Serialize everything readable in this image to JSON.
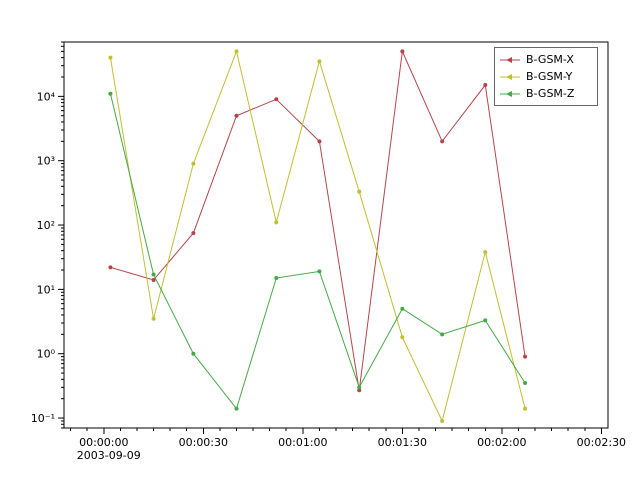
{
  "figure": {
    "background_color": "#ffffff",
    "frame_color": "#000000",
    "tick_color": "#000000",
    "text_color": "#000000"
  },
  "chart_data": {
    "type": "line",
    "title": "",
    "xlabel": "",
    "ylabel": "",
    "legend_position": "top-right",
    "grid": false,
    "x_axis": {
      "range_seconds": [
        -12,
        152
      ],
      "tick_seconds": [
        0,
        30,
        60,
        90,
        120,
        150
      ],
      "tick_labels": [
        "00:00:00",
        "00:00:30",
        "00:01:00",
        "00:01:30",
        "00:02:00",
        "00:02:30"
      ],
      "date_label": "2003-09-09",
      "minor_step_seconds": 5
    },
    "y_axis": {
      "scale": "log",
      "range": [
        0.07,
        70000
      ],
      "tick_exponents": [
        -1,
        0,
        1,
        2,
        3,
        4
      ],
      "tick_labels": [
        "10⁻¹",
        "10⁰",
        "10¹",
        "10²",
        "10³",
        "10⁴"
      ]
    },
    "x_seconds": [
      2,
      15,
      27,
      40,
      52,
      65,
      77,
      90,
      102,
      115,
      127
    ],
    "series": [
      {
        "name": "B-GSM-X",
        "color": "#b4464b",
        "values": [
          22,
          14,
          75,
          5000,
          9000,
          2000,
          0.27,
          50000,
          2000,
          15000,
          0.9
        ]
      },
      {
        "name": "B-GSM-Y",
        "color": "#c3bd32",
        "values": [
          40000,
          3.5,
          900,
          50000,
          110,
          35000,
          330,
          1.8,
          0.09,
          38,
          0.14
        ]
      },
      {
        "name": "B-GSM-Z",
        "color": "#46a846",
        "values": [
          11000,
          17,
          1.0,
          0.14,
          15,
          19,
          0.3,
          5,
          2,
          3.3,
          0.35
        ]
      }
    ]
  }
}
